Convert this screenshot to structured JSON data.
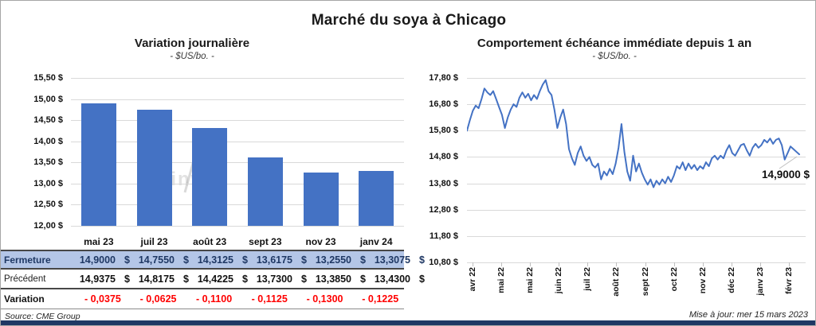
{
  "page": {
    "title": "Marché du soya à Chicago",
    "source_note": "Source: CME Group",
    "update_note": "Mise à jour: mer 15 mars 2023",
    "watermark": "grainwiz"
  },
  "colors": {
    "series_blue": "#4472C4",
    "table_highlight_bg": "#B4C6E7",
    "navy_text": "#1F3864",
    "negative_red": "#FF0000",
    "gridline_gray": "#D9D9D9",
    "footer_bar_navy": "#1F3864"
  },
  "table": {
    "header": [
      "mai 23",
      "juil 23",
      "août 23",
      "sept 23",
      "nov 23",
      "janv 24"
    ],
    "currency": "$",
    "rows": [
      {
        "label": "Fermeture",
        "style": "fermeture",
        "currency": true,
        "values": [
          "14,9000",
          "14,7550",
          "14,3125",
          "13,6175",
          "13,2550",
          "13,3075"
        ]
      },
      {
        "label": "Précédent",
        "style": "precedent",
        "currency": true,
        "values": [
          "14,9375",
          "14,8175",
          "14,4225",
          "13,7300",
          "13,3850",
          "13,4300"
        ]
      },
      {
        "label": "Variation",
        "style": "variation",
        "currency": false,
        "values": [
          "- 0,0375",
          "- 0,0625",
          "- 0,1100",
          "- 0,1125",
          "- 0,1300",
          "- 0,1225"
        ]
      }
    ]
  },
  "chart_data": [
    {
      "type": "bar",
      "title": "Variation  journalière",
      "subtitle": "- $US/bo. -",
      "categories": [
        "mai 23",
        "juil 23",
        "août 23",
        "sept 23",
        "nov 23",
        "janv 24"
      ],
      "values": [
        14.9,
        14.755,
        14.3125,
        13.6175,
        13.255,
        13.3075
      ],
      "ylim": [
        12.0,
        15.5
      ],
      "ytick_labels": [
        "15,50 $",
        "15,00 $",
        "14,50 $",
        "14,00 $",
        "13,50 $",
        "13,00 $",
        "12,50 $",
        "12,00 $"
      ],
      "bar_color": "#4472C4",
      "grid": true,
      "legend": "none"
    },
    {
      "type": "line",
      "title": "Comportement  échéance  immédiate  depuis  1  an",
      "subtitle": "- $US/bo. -",
      "x_labels": [
        "avr 22",
        "mai 22",
        "mai 22",
        "juin 22",
        "juil 22",
        "août 22",
        "sept 22",
        "oct 22",
        "nov 22",
        "déc 22",
        "janv 23",
        "févr 23"
      ],
      "values": [
        15.8,
        16.2,
        16.55,
        16.75,
        16.65,
        17.0,
        17.4,
        17.25,
        17.15,
        17.3,
        17.0,
        16.7,
        16.4,
        15.9,
        16.3,
        16.6,
        16.8,
        16.7,
        17.05,
        17.25,
        17.05,
        17.2,
        16.95,
        17.15,
        17.0,
        17.3,
        17.55,
        17.72,
        17.3,
        17.15,
        16.6,
        15.9,
        16.3,
        16.6,
        16.05,
        15.1,
        14.75,
        14.5,
        14.95,
        15.2,
        14.85,
        14.65,
        14.8,
        14.5,
        14.4,
        14.55,
        13.95,
        14.25,
        14.1,
        14.35,
        14.15,
        14.55,
        15.15,
        16.05,
        15.0,
        14.25,
        13.9,
        14.85,
        14.25,
        14.55,
        14.2,
        13.95,
        13.75,
        13.95,
        13.65,
        13.9,
        13.75,
        13.95,
        13.8,
        14.05,
        13.85,
        14.1,
        14.45,
        14.35,
        14.6,
        14.3,
        14.55,
        14.35,
        14.5,
        14.3,
        14.45,
        14.35,
        14.6,
        14.45,
        14.75,
        14.85,
        14.7,
        14.85,
        14.75,
        15.05,
        15.25,
        14.95,
        14.85,
        15.05,
        15.25,
        15.3,
        15.05,
        14.85,
        15.15,
        15.3,
        15.15,
        15.25,
        15.45,
        15.35,
        15.5,
        15.3,
        15.45,
        15.5,
        15.25,
        14.7,
        14.95,
        15.2,
        15.1,
        15.0,
        14.9
      ],
      "ylim": [
        10.8,
        17.8
      ],
      "ytick_labels": [
        "17,80 $",
        "16,80 $",
        "15,80 $",
        "14,80 $",
        "13,80 $",
        "12,80 $",
        "11,80 $",
        "10,80 $"
      ],
      "line_color": "#4472C4",
      "grid": true,
      "legend": "none",
      "annotation": {
        "text": "14,9000 $",
        "value": 14.9
      }
    }
  ]
}
